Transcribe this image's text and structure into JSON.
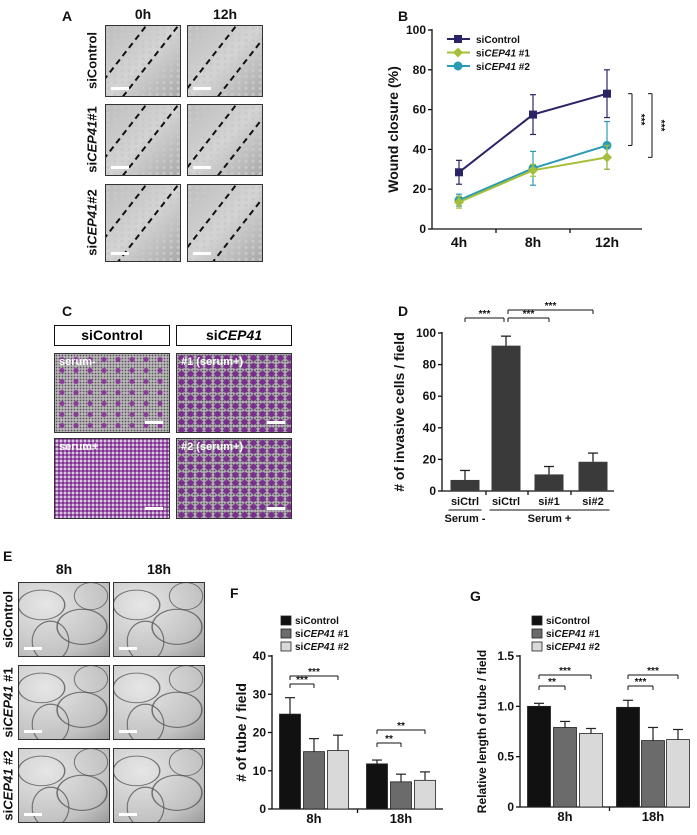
{
  "panel_labels": {
    "a": "A",
    "b": "B",
    "c": "C",
    "d": "D",
    "e": "E",
    "f": "F",
    "g": "G"
  },
  "panel_a": {
    "columns": [
      "0h",
      "12h"
    ],
    "rows": [
      {
        "prefix": "si",
        "gene": "",
        "suffix": "Control"
      },
      {
        "prefix": "si",
        "gene": "CEP41",
        "suffix": "#1"
      },
      {
        "prefix": "si",
        "gene": "CEP41",
        "suffix": "#2"
      }
    ]
  },
  "panel_c": {
    "headers": [
      {
        "prefix": "siControl",
        "gene": ""
      },
      {
        "prefix": "si",
        "gene": "CEP41"
      }
    ],
    "images": [
      "serum-",
      "#1 (serum+)",
      "serum+",
      "#2 (serum+)"
    ]
  },
  "panel_e": {
    "columns": [
      "8h",
      "18h"
    ],
    "rows": [
      {
        "prefix": "si",
        "gene": "",
        "suffix": "Control"
      },
      {
        "prefix": "si",
        "gene": "CEP41",
        "suffix": " #1"
      },
      {
        "prefix": "si",
        "gene": "CEP41",
        "suffix": " #2"
      }
    ]
  },
  "chart_data": [
    {
      "id": "B",
      "type": "line",
      "ylabel": "Wound closure (%)",
      "ylim": [
        0,
        100
      ],
      "yticks": [
        "0",
        "20",
        "40",
        "60",
        "80",
        "100"
      ],
      "categories": [
        "4h",
        "8h",
        "12h"
      ],
      "series": [
        {
          "prefix": "si",
          "gene": "",
          "suffix": "Control",
          "color": "#2a2466",
          "marker": "square",
          "values": [
            28.5,
            57.5,
            68
          ],
          "errors": [
            6,
            10,
            12
          ]
        },
        {
          "prefix": "si",
          "gene": "CEP41",
          "suffix": " #1",
          "color": "#a6bf3a",
          "marker": "diamond",
          "values": [
            13.5,
            29.5,
            36
          ],
          "errors": [
            3,
            3,
            6
          ]
        },
        {
          "prefix": "si",
          "gene": "CEP41",
          "suffix": " #2",
          "color": "#2a9bb5",
          "marker": "circle",
          "values": [
            14.5,
            30.5,
            42
          ],
          "errors": [
            3,
            8.5,
            12
          ]
        }
      ],
      "significance": [
        {
          "between": [
            "siControl",
            "siCEP41 #2"
          ],
          "label": "***"
        },
        {
          "between": [
            "siControl",
            "siCEP41 #1"
          ],
          "label": "***"
        }
      ],
      "legend": "top-left"
    },
    {
      "id": "D",
      "type": "bar",
      "ylabel": "# of invasive cells / field",
      "ylim": [
        0,
        100
      ],
      "yticks": [
        "0",
        "20",
        "40",
        "60",
        "80",
        "100"
      ],
      "categories": [
        "siCtrl",
        "siCtrl",
        "si#1",
        "si#2"
      ],
      "values": [
        7,
        92,
        10.5,
        18.5
      ],
      "errors": [
        6,
        6,
        5,
        5.5
      ],
      "color": "#3a3a3a",
      "groups": [
        {
          "label": "Serum -",
          "span": [
            0,
            0
          ]
        },
        {
          "label": "Serum +",
          "span": [
            1,
            3
          ]
        }
      ],
      "significance": [
        {
          "from": 0,
          "to": 1,
          "label": "***"
        },
        {
          "from": 1,
          "to": 2,
          "label": "***"
        },
        {
          "from": 1,
          "to": 3,
          "label": "***"
        }
      ]
    },
    {
      "id": "F",
      "type": "bar",
      "ylabel": "# of tube / field",
      "ylim": [
        0,
        40
      ],
      "yticks": [
        "0",
        "10",
        "20",
        "30",
        "40"
      ],
      "categories": [
        "8h",
        "18h"
      ],
      "series": [
        {
          "prefix": "si",
          "gene": "",
          "suffix": "Control",
          "color": "#111111",
          "values": [
            24.8,
            11.8
          ],
          "errors": [
            4.3,
            1
          ]
        },
        {
          "prefix": "si",
          "gene": "CEP41",
          "suffix": " #1",
          "color": "#6b6b6b",
          "values": [
            15,
            7.1
          ],
          "errors": [
            3.4,
            2
          ]
        },
        {
          "prefix": "si",
          "gene": "CEP41",
          "suffix": " #2",
          "color": "#d9d9d9",
          "values": [
            15.3,
            7.5
          ],
          "errors": [
            4,
            2.2
          ]
        }
      ],
      "significance": [
        {
          "category": 0,
          "from": 0,
          "to": 1,
          "label": "***"
        },
        {
          "category": 0,
          "from": 0,
          "to": 2,
          "label": "***"
        },
        {
          "category": 1,
          "from": 0,
          "to": 1,
          "label": "**"
        },
        {
          "category": 1,
          "from": 0,
          "to": 2,
          "label": "**"
        }
      ],
      "legend": "top-left"
    },
    {
      "id": "G",
      "type": "bar",
      "ylabel": "Relative length of tube / field",
      "ylim": [
        0,
        1.5
      ],
      "yticks": [
        "0",
        "0.5",
        "1.0",
        "1.5"
      ],
      "categories": [
        "8h",
        "18h"
      ],
      "series": [
        {
          "prefix": "si",
          "gene": "",
          "suffix": "Control",
          "color": "#111111",
          "values": [
            1.0,
            0.99
          ],
          "errors": [
            0.03,
            0.07
          ]
        },
        {
          "prefix": "si",
          "gene": "CEP41",
          "suffix": " #1",
          "color": "#6b6b6b",
          "values": [
            0.79,
            0.66
          ],
          "errors": [
            0.06,
            0.13
          ]
        },
        {
          "prefix": "si",
          "gene": "CEP41",
          "suffix": " #2",
          "color": "#d9d9d9",
          "values": [
            0.73,
            0.67
          ],
          "errors": [
            0.05,
            0.1
          ]
        }
      ],
      "significance": [
        {
          "category": 0,
          "from": 0,
          "to": 1,
          "label": "**"
        },
        {
          "category": 0,
          "from": 0,
          "to": 2,
          "label": "***"
        },
        {
          "category": 1,
          "from": 0,
          "to": 1,
          "label": "***"
        },
        {
          "category": 1,
          "from": 0,
          "to": 2,
          "label": "***"
        }
      ],
      "legend": "top-left"
    }
  ]
}
